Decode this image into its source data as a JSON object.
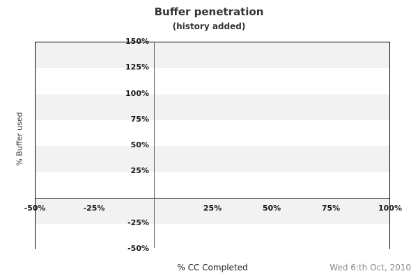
{
  "chart_data": {
    "type": "scatter",
    "title": "Buffer penetration",
    "subtitle": "(history added)",
    "xlabel": "% CC Completed",
    "ylabel": "% Buffer used",
    "xlim": [
      -50,
      100
    ],
    "ylim": [
      -50,
      150
    ],
    "band_step": 25,
    "x_ticks": [
      {
        "value": -50,
        "label": "-50%"
      },
      {
        "value": -25,
        "label": "-25%"
      },
      {
        "value": 25,
        "label": "25%"
      },
      {
        "value": 50,
        "label": "50%"
      },
      {
        "value": 75,
        "label": "75%"
      },
      {
        "value": 100,
        "label": "100%"
      }
    ],
    "y_ticks": [
      {
        "value": 150,
        "label": "150%"
      },
      {
        "value": 125,
        "label": "125%"
      },
      {
        "value": 100,
        "label": "100%"
      },
      {
        "value": 75,
        "label": "75%"
      },
      {
        "value": 50,
        "label": "50%"
      },
      {
        "value": 25,
        "label": "25%"
      },
      {
        "value": -25,
        "label": "-25%"
      },
      {
        "value": -50,
        "label": "-50%"
      }
    ],
    "series": [],
    "grid": "alternating-horizontal-bands",
    "legend_position": "none",
    "annotation_date": "Wed 6:th Oct, 2010",
    "colors": {
      "band_gray": "#f2f2f2",
      "band_white": "#ffffff",
      "zero_axis_line": "#666666",
      "plot_border": "#000000",
      "tick_label": "#1a1a1a",
      "title_text": "#333333",
      "date_text": "#888888"
    }
  }
}
